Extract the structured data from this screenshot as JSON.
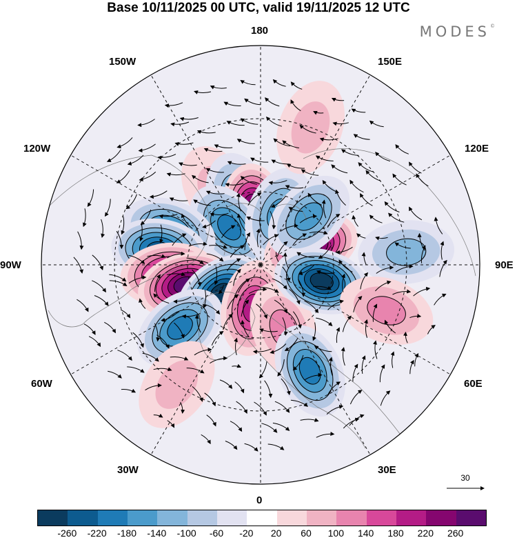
{
  "title": "Base 10/11/2025 00 UTC, valid 19/11/2025 12 UTC",
  "brand": {
    "name": "MODES",
    "mark": "©"
  },
  "longitude_labels": {
    "top": "180",
    "bottom": "0",
    "left": "90W",
    "right": "90E",
    "upper_left": "150W",
    "upper_right": "150E",
    "mid_upper_left": "120W",
    "mid_upper_right": "120E",
    "mid_lower_left": "60W",
    "mid_lower_right": "60E",
    "lower_left": "30W",
    "lower_right": "30E"
  },
  "vector_scale": {
    "value": "30"
  },
  "colorbar": {
    "colors": [
      "#0b3b5e",
      "#0d5b8f",
      "#1f7bb6",
      "#4b9bcb",
      "#83b5da",
      "#b5c8e3",
      "#e2e2f1",
      "#ffffff",
      "#f8d8dc",
      "#f0b3c3",
      "#e884ae",
      "#d8489a",
      "#b41c86",
      "#85066f",
      "#5a0c6e"
    ],
    "ticks": [
      "-260",
      "-220",
      "-180",
      "-140",
      "-100",
      "-60",
      "-20",
      "20",
      "60",
      "100",
      "140",
      "180",
      "220",
      "260"
    ]
  },
  "anomaly_centers": [
    {
      "lon": -150,
      "lat": 55,
      "value": 70
    },
    {
      "lon": -162,
      "lat": 62,
      "value": -120
    },
    {
      "lon": -173,
      "lat": 68,
      "value": 240
    },
    {
      "lon": -140,
      "lat": 70,
      "value": -170
    },
    {
      "lon": 160,
      "lat": 68,
      "value": -140
    },
    {
      "lon": -110,
      "lat": 50,
      "value": -190
    },
    {
      "lon": -98,
      "lat": 48,
      "value": -210
    },
    {
      "lon": -84,
      "lat": 52,
      "value": 210
    },
    {
      "lon": -75,
      "lat": 58,
      "value": 270
    },
    {
      "lon": -55,
      "lat": 70,
      "value": -240
    },
    {
      "lon": -52,
      "lat": 48,
      "value": -170
    },
    {
      "lon": -10,
      "lat": 72,
      "value": 190
    },
    {
      "lon": 20,
      "lat": 62,
      "value": 110
    },
    {
      "lon": 25,
      "lat": 42,
      "value": -160
    },
    {
      "lon": 110,
      "lat": 68,
      "value": 250
    },
    {
      "lon": 135,
      "lat": 62,
      "value": -140
    },
    {
      "lon": 75,
      "lat": 64,
      "value": -240
    },
    {
      "lon": 95,
      "lat": 30,
      "value": -80
    },
    {
      "lon": 70,
      "lat": 35,
      "value": 80
    },
    {
      "lon": 160,
      "lat": 30,
      "value": 40
    },
    {
      "lon": -35,
      "lat": 30,
      "value": 60
    }
  ]
}
